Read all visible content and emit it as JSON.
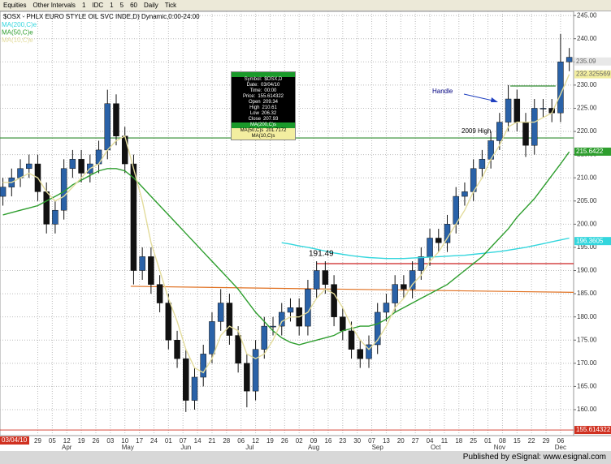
{
  "toolbar": {
    "items": [
      "Equities",
      "Other Intervals",
      "1",
      "IDC",
      "1",
      "5",
      "60",
      "Daily",
      "Tick"
    ]
  },
  "footer": "Published by eSignal: www.esignal.com",
  "data_window": {
    "rows": [
      [
        "Symbol:",
        "$OSX,D"
      ],
      [
        "Date:",
        "03/04/10"
      ],
      [
        "Time:",
        "00:00"
      ],
      [
        "Price:",
        "155.614322"
      ],
      [
        "Open",
        "209.34"
      ],
      [
        "High",
        "210.61"
      ],
      [
        "Low",
        "206.32"
      ],
      [
        "Close",
        "207.93"
      ],
      [
        "MA(200,C)s"
      ],
      [
        "MA(50,C)s",
        "201.7172"
      ],
      [
        "MA(10,C)s"
      ]
    ]
  },
  "chart_data": {
    "type": "candlestick",
    "title": "$OSX - PHLX EURO STYLE OIL SVC INDE,D) Dynamic,0:00-24:00",
    "up_color": "#2a62a8",
    "down_color": "#111111",
    "x": [
      -12,
      -9,
      -6,
      -3,
      0,
      3,
      6,
      9,
      12,
      15,
      18,
      21,
      24,
      27,
      30,
      33,
      36,
      39,
      42,
      45,
      48,
      51,
      54,
      57,
      60,
      63,
      66,
      69,
      72,
      75,
      78,
      81,
      84,
      87,
      90,
      93,
      96,
      99,
      102,
      105,
      108,
      111,
      114,
      117,
      120,
      123,
      126,
      129,
      132,
      135,
      138,
      141,
      144,
      147,
      150,
      153,
      156,
      159,
      162,
      165,
      168,
      171,
      174,
      177,
      180,
      183
    ],
    "open": [
      206,
      208,
      210,
      212,
      213,
      207,
      200,
      203,
      212,
      214,
      211,
      213,
      216,
      226,
      219,
      213,
      190,
      193,
      187,
      183,
      175,
      171,
      162,
      167,
      172,
      179,
      183,
      176,
      170,
      164,
      173,
      178,
      178,
      181,
      182,
      178,
      186,
      190,
      187,
      180,
      177,
      173,
      171,
      174,
      181,
      183,
      187,
      186,
      190,
      193,
      197,
      196,
      200,
      206,
      207,
      212,
      214,
      218,
      222,
      227,
      222,
      217,
      225,
      225,
      224,
      235
    ],
    "high": [
      210,
      212,
      214,
      215,
      215,
      209,
      205,
      214,
      216,
      216,
      215,
      218,
      229,
      228,
      221,
      215,
      195,
      195,
      189,
      185,
      177,
      173,
      169,
      174,
      181,
      186,
      185,
      178,
      172,
      175,
      180,
      180,
      183,
      184,
      184,
      188,
      192,
      192,
      189,
      182,
      179,
      175,
      176,
      183,
      185,
      189,
      189,
      192,
      195,
      199,
      199,
      202,
      208,
      209,
      214,
      216,
      220,
      224,
      230,
      229,
      224,
      227,
      227,
      227,
      241,
      238
    ],
    "low": [
      204,
      206,
      208,
      210,
      205,
      198,
      198,
      201,
      210,
      209,
      209,
      211,
      214,
      217,
      211,
      187,
      188,
      185,
      181,
      173,
      169,
      159.5,
      160,
      165,
      170,
      177,
      174,
      168,
      160.5,
      162,
      171,
      176,
      176,
      179,
      176,
      176,
      184,
      185,
      178,
      175,
      171,
      169,
      169,
      172,
      179,
      181,
      184,
      184,
      188,
      191,
      194,
      194,
      198,
      204,
      205,
      210,
      212,
      216,
      220,
      220,
      214.5,
      215,
      223,
      222,
      222,
      233
    ],
    "close": [
      208,
      210,
      212,
      213,
      207,
      200,
      203,
      212,
      214,
      211,
      213,
      216,
      226,
      219,
      213,
      190,
      193,
      187,
      183,
      175,
      171,
      162,
      167,
      172,
      179,
      183,
      176,
      170,
      164,
      173,
      178,
      178,
      181,
      182,
      178,
      186,
      190,
      187,
      180,
      177,
      173,
      171,
      174,
      181,
      183,
      187,
      186,
      190,
      193,
      197,
      196,
      200,
      206,
      207,
      212,
      214,
      218,
      222,
      227,
      222,
      217,
      225,
      225,
      224,
      235,
      236
    ],
    "series": [
      {
        "name": "MA(200,C)e",
        "color": "#33d6dd",
        "values": [
          null,
          null,
          null,
          null,
          null,
          null,
          null,
          null,
          null,
          null,
          null,
          null,
          null,
          null,
          null,
          null,
          null,
          null,
          null,
          null,
          null,
          null,
          null,
          null,
          null,
          null,
          null,
          null,
          null,
          null,
          null,
          null,
          196,
          195.7,
          195.3,
          195,
          194.6,
          194.2,
          193.8,
          193.5,
          193.2,
          193,
          192.8,
          192.7,
          192.6,
          192.6,
          192.6,
          192.7,
          192.8,
          192.9,
          193,
          193.1,
          193.2,
          193.3,
          193.5,
          193.7,
          193.9,
          194.1,
          194.4,
          194.7,
          195,
          195.4,
          195.8,
          196.2,
          196.6,
          197
        ]
      },
      {
        "name": "MA(50,C)e",
        "color": "#2e9e2e",
        "values": [
          202,
          202.5,
          203,
          203.5,
          204,
          205,
          206,
          207,
          208.5,
          209.5,
          210.5,
          211.5,
          212,
          212,
          211.5,
          210,
          208,
          206,
          204,
          202,
          200,
          198,
          196,
          194,
          192,
          190,
          188,
          186,
          183.5,
          181,
          179,
          177,
          175.5,
          174.5,
          174,
          174.5,
          175,
          175.5,
          176,
          177,
          177.5,
          178,
          178,
          178.5,
          179.5,
          181,
          182,
          183,
          184,
          185,
          186,
          187,
          188.5,
          190,
          191.5,
          193,
          195,
          197,
          199,
          201.5,
          203.5,
          205.5,
          208,
          210.5,
          213,
          215.6
        ]
      },
      {
        "name": "MA(10,C)e",
        "color": "#e3dc9c",
        "values": [
          209,
          209,
          210,
          211,
          210,
          207,
          205,
          206,
          208,
          210,
          212,
          213,
          216,
          218,
          219,
          212,
          205,
          196,
          190,
          184,
          179,
          173,
          169,
          168,
          171,
          176,
          178,
          177,
          172,
          171,
          172,
          175,
          179,
          180,
          180,
          181,
          184,
          186,
          185,
          182,
          178,
          175,
          173,
          175,
          178,
          182,
          184,
          187,
          189,
          192,
          194,
          197,
          200,
          203,
          207,
          210,
          214,
          217,
          221,
          222,
          222,
          222,
          223,
          224,
          228,
          232.3
        ]
      }
    ],
    "xlim": [
      -13,
      184.5
    ],
    "ylim": [
      154.4,
      245.9
    ],
    "xticks": [
      {
        "value": 0,
        "label": "29"
      },
      {
        "value": 5,
        "label": "05"
      },
      {
        "value": 10,
        "label": "12"
      },
      {
        "value": 15,
        "label": "19"
      },
      {
        "value": 20,
        "label": "26"
      },
      {
        "value": 25,
        "label": "03"
      },
      {
        "value": 30,
        "label": "10"
      },
      {
        "value": 35,
        "label": "17"
      },
      {
        "value": 40,
        "label": "24"
      },
      {
        "value": 45,
        "label": "01"
      },
      {
        "value": 50,
        "label": "07"
      },
      {
        "value": 55,
        "label": "14"
      },
      {
        "value": 60,
        "label": "21"
      },
      {
        "value": 65,
        "label": "28"
      },
      {
        "value": 70,
        "label": "06"
      },
      {
        "value": 75,
        "label": "12"
      },
      {
        "value": 80,
        "label": "19"
      },
      {
        "value": 85,
        "label": "26"
      },
      {
        "value": 90,
        "label": "02"
      },
      {
        "value": 95,
        "label": "09"
      },
      {
        "value": 100,
        "label": "16"
      },
      {
        "value": 105,
        "label": "23"
      },
      {
        "value": 110,
        "label": "30"
      },
      {
        "value": 115,
        "label": "07"
      },
      {
        "value": 120,
        "label": "13"
      },
      {
        "value": 125,
        "label": "20"
      },
      {
        "value": 130,
        "label": "27"
      },
      {
        "value": 135,
        "label": "04"
      },
      {
        "value": 140,
        "label": "11"
      },
      {
        "value": 145,
        "label": "18"
      },
      {
        "value": 150,
        "label": "25"
      },
      {
        "value": 155,
        "label": "01"
      },
      {
        "value": 160,
        "label": "08"
      },
      {
        "value": 165,
        "label": "15"
      },
      {
        "value": 170,
        "label": "22"
      },
      {
        "value": 175,
        "label": "29"
      },
      {
        "value": 180,
        "label": "06"
      }
    ],
    "month_labels": [
      {
        "value": 10,
        "label": "Apr"
      },
      {
        "value": 31,
        "label": "May"
      },
      {
        "value": 51,
        "label": "Jun"
      },
      {
        "value": 73,
        "label": "Jul"
      },
      {
        "value": 95,
        "label": "Aug"
      },
      {
        "value": 117,
        "label": "Sep"
      },
      {
        "value": 137,
        "label": "Oct"
      },
      {
        "value": 159,
        "label": "Nov"
      },
      {
        "value": 180,
        "label": "Dec"
      }
    ],
    "yticks": [
      {
        "value": 160,
        "label": "160.00"
      },
      {
        "value": 165,
        "label": "165.00"
      },
      {
        "value": 170,
        "label": "170.00"
      },
      {
        "value": 175,
        "label": "175.00"
      },
      {
        "value": 180,
        "label": "180.00"
      },
      {
        "value": 185,
        "label": "185.00"
      },
      {
        "value": 190,
        "label": "190.00"
      },
      {
        "value": 195,
        "label": "195.00"
      },
      {
        "value": 200,
        "label": "200.00"
      },
      {
        "value": 205,
        "label": "205.00"
      },
      {
        "value": 210,
        "label": "210.00"
      },
      {
        "value": 215,
        "label": "215.00"
      },
      {
        "value": 220,
        "label": "220.00"
      },
      {
        "value": 225,
        "label": "225.00"
      },
      {
        "value": 230,
        "label": "230.00"
      },
      {
        "value": 235,
        "label": "235.00"
      },
      {
        "value": 240,
        "label": "240.00"
      },
      {
        "value": 245,
        "label": "245.00"
      }
    ],
    "grid": true,
    "levels": [
      {
        "x": [
          -13,
          184.5
        ],
        "y": [
          218.6,
          218.6
        ],
        "color": "#2e8b2e"
      },
      {
        "x": [
          96,
          184.5
        ],
        "y": [
          191.49,
          191.49
        ],
        "color": "#cc2222"
      },
      {
        "x": [
          32,
          184.5
        ],
        "y": [
          186.6,
          185.3
        ],
        "color": "#e07020"
      },
      {
        "x": [
          162.7,
          178.3
        ],
        "y": [
          229.8,
          229.8
        ],
        "color": "#2e8b2e"
      }
    ],
    "annotations": {
      "handle": "Handle",
      "high": "2009 High"
    },
    "price_boxes": [
      {
        "value": 235.09,
        "color": "#e8e8e8",
        "text_color": "#666666"
      },
      {
        "value": 232.325569,
        "color": "#f3eea0",
        "text_color": "#666666"
      },
      {
        "value": 215.6422,
        "color": "#2e9e2e",
        "text_color": "#ffffff"
      },
      {
        "value": 196.3605,
        "color": "#33d6dd",
        "text_color": "#ffffff"
      },
      {
        "value": 155.614322,
        "color": "#d03020",
        "text_color": "#ffffff"
      }
    ],
    "cursor_date": "03/04/10"
  }
}
